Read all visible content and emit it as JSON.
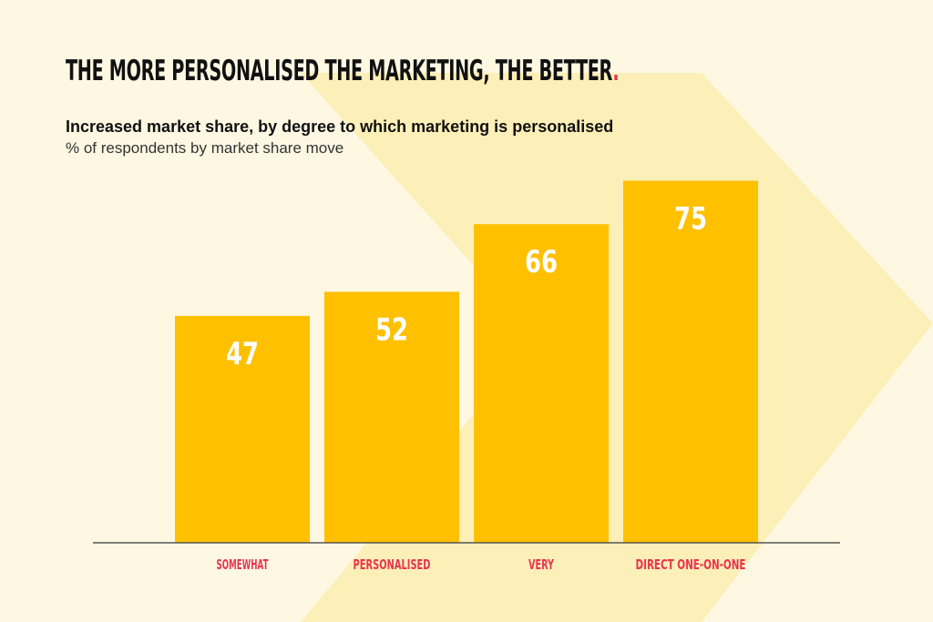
{
  "header": {
    "title": "THE MORE PERSONALISED THE MARKETING, THE BETTER",
    "title_dot": ".",
    "subtitle": "Increased market share, by degree to which marketing is personalised",
    "subnote": "% of respondents by market share move"
  },
  "colors": {
    "background": "#fef8e3",
    "arrow": "#fdefb8",
    "bar": "#ffc000",
    "value_label": "#ffffff",
    "category_label": "#e8344e",
    "axis": "#555555"
  },
  "chart_data": {
    "type": "bar",
    "title": "Increased market share, by degree to which marketing is personalised",
    "subtitle": "% of respondents by market share move",
    "categories": [
      "SOMEWHAT",
      "PERSONALISED",
      "VERY",
      "DIRECT ONE-ON-ONE"
    ],
    "values": [
      47,
      52,
      66,
      75
    ],
    "value_labels": [
      "47",
      "52",
      "66",
      "75"
    ],
    "ylim": [
      0,
      100
    ],
    "grid": false,
    "legend": "none"
  }
}
